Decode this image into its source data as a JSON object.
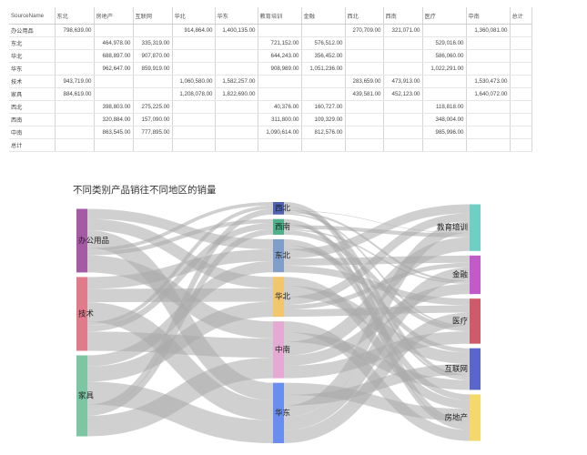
{
  "table": {
    "corner": "SourceName",
    "columns": [
      "东北",
      "房地产",
      "互联网",
      "华北",
      "华东",
      "教育培训",
      "金融",
      "西北",
      "西南",
      "医疗",
      "中南",
      "总计"
    ],
    "rows": [
      {
        "name": "办公用品",
        "cells": [
          "798,639.00",
          "",
          "",
          "914,864.00",
          "1,400,135.00",
          "",
          "",
          "270,709.00",
          "321,071.00",
          "",
          "1,360,081.00",
          ""
        ]
      },
      {
        "name": "东北",
        "cells": [
          "",
          "464,978.00",
          "335,319.00",
          "",
          "",
          "721,152.00",
          "576,512.00",
          "",
          "",
          "529,016.00",
          "",
          ""
        ]
      },
      {
        "name": "华北",
        "cells": [
          "",
          "688,897.00",
          "907,870.00",
          "",
          "",
          "644,243.00",
          "356,452.00",
          "",
          "",
          "586,060.00",
          "",
          ""
        ]
      },
      {
        "name": "华东",
        "cells": [
          "",
          "962,647.00",
          "859,919.00",
          "",
          "",
          "908,989.00",
          "1,051,236.00",
          "",
          "",
          "1,022,291.00",
          "",
          ""
        ]
      },
      {
        "name": "技术",
        "cells": [
          "943,719.00",
          "",
          "",
          "1,060,580.00",
          "1,582,257.00",
          "",
          "",
          "283,659.00",
          "473,913.00",
          "",
          "1,530,473.00",
          ""
        ]
      },
      {
        "name": "家具",
        "cells": [
          "884,619.00",
          "",
          "",
          "1,208,078.00",
          "1,822,690.00",
          "",
          "",
          "439,581.00",
          "452,123.00",
          "",
          "1,640,072.00",
          ""
        ]
      },
      {
        "name": "西北",
        "cells": [
          "",
          "398,803.00",
          "275,225.00",
          "",
          "",
          "40,376.00",
          "160,727.00",
          "",
          "",
          "118,818.00",
          "",
          ""
        ]
      },
      {
        "name": "西南",
        "cells": [
          "",
          "320,884.00",
          "157,090.00",
          "",
          "",
          "311,800.00",
          "109,329.00",
          "",
          "",
          "348,004.00",
          "",
          ""
        ]
      },
      {
        "name": "中南",
        "cells": [
          "",
          "863,545.00",
          "777,895.00",
          "",
          "",
          "1,090,614.00",
          "812,576.00",
          "",
          "",
          "985,996.00",
          "",
          ""
        ]
      },
      {
        "name": "总计",
        "cells": [
          "",
          "",
          "",
          "",
          "",
          "",
          "",
          "",
          "",
          "",
          "",
          ""
        ]
      }
    ]
  },
  "chart_data": {
    "type": "sankey",
    "title": "不同类别产品销往不同地区的销量",
    "nodes": [
      {
        "name": "办公用品",
        "column": 0,
        "color": "#a45aa4"
      },
      {
        "name": "技术",
        "column": 0,
        "color": "#e07b8c"
      },
      {
        "name": "家具",
        "column": 0,
        "color": "#7cc6a4"
      },
      {
        "name": "西北",
        "column": 1,
        "color": "#4f63b0"
      },
      {
        "name": "西南",
        "column": 1,
        "color": "#4fb08c"
      },
      {
        "name": "东北",
        "column": 1,
        "color": "#7f9ec9"
      },
      {
        "name": "华北",
        "column": 1,
        "color": "#f2c66d"
      },
      {
        "name": "中南",
        "column": 1,
        "color": "#e5a9d4"
      },
      {
        "name": "华东",
        "column": 1,
        "color": "#6a8df0"
      },
      {
        "name": "教育培训",
        "column": 2,
        "color": "#6fcfc4"
      },
      {
        "name": "金融",
        "column": 2,
        "color": "#c25ac9"
      },
      {
        "name": "医疗",
        "column": 2,
        "color": "#cf5a6a"
      },
      {
        "name": "互联网",
        "column": 2,
        "color": "#5a66c9"
      },
      {
        "name": "房地产",
        "column": 2,
        "color": "#f4d96a"
      }
    ],
    "links": [
      {
        "source": "办公用品",
        "target": "东北",
        "value": 798639
      },
      {
        "source": "办公用品",
        "target": "华北",
        "value": 914864
      },
      {
        "source": "办公用品",
        "target": "华东",
        "value": 1400135
      },
      {
        "source": "办公用品",
        "target": "西北",
        "value": 270709
      },
      {
        "source": "办公用品",
        "target": "西南",
        "value": 321071
      },
      {
        "source": "办公用品",
        "target": "中南",
        "value": 1360081
      },
      {
        "source": "技术",
        "target": "东北",
        "value": 943719
      },
      {
        "source": "技术",
        "target": "华北",
        "value": 1060580
      },
      {
        "source": "技术",
        "target": "华东",
        "value": 1582257
      },
      {
        "source": "技术",
        "target": "西北",
        "value": 283659
      },
      {
        "source": "技术",
        "target": "西南",
        "value": 473913
      },
      {
        "source": "技术",
        "target": "中南",
        "value": 1530473
      },
      {
        "source": "家具",
        "target": "东北",
        "value": 884619
      },
      {
        "source": "家具",
        "target": "华北",
        "value": 1208078
      },
      {
        "source": "家具",
        "target": "华东",
        "value": 1822690
      },
      {
        "source": "家具",
        "target": "西北",
        "value": 439581
      },
      {
        "source": "家具",
        "target": "西南",
        "value": 452123
      },
      {
        "source": "家具",
        "target": "中南",
        "value": 1640072
      },
      {
        "source": "东北",
        "target": "房地产",
        "value": 464978
      },
      {
        "source": "东北",
        "target": "互联网",
        "value": 335319
      },
      {
        "source": "东北",
        "target": "教育培训",
        "value": 721152
      },
      {
        "source": "东北",
        "target": "金融",
        "value": 576512
      },
      {
        "source": "东北",
        "target": "医疗",
        "value": 529016
      },
      {
        "source": "华北",
        "target": "房地产",
        "value": 688897
      },
      {
        "source": "华北",
        "target": "互联网",
        "value": 907870
      },
      {
        "source": "华北",
        "target": "教育培训",
        "value": 644243
      },
      {
        "source": "华北",
        "target": "金融",
        "value": 356452
      },
      {
        "source": "华北",
        "target": "医疗",
        "value": 586060
      },
      {
        "source": "华东",
        "target": "房地产",
        "value": 962647
      },
      {
        "source": "华东",
        "target": "互联网",
        "value": 859919
      },
      {
        "source": "华东",
        "target": "教育培训",
        "value": 908989
      },
      {
        "source": "华东",
        "target": "金融",
        "value": 1051236
      },
      {
        "source": "华东",
        "target": "医疗",
        "value": 1022291
      },
      {
        "source": "西北",
        "target": "房地产",
        "value": 398803
      },
      {
        "source": "西北",
        "target": "互联网",
        "value": 275225
      },
      {
        "source": "西北",
        "target": "教育培训",
        "value": 40376
      },
      {
        "source": "西北",
        "target": "金融",
        "value": 160727
      },
      {
        "source": "西北",
        "target": "医疗",
        "value": 118818
      },
      {
        "source": "西南",
        "target": "房地产",
        "value": 320884
      },
      {
        "source": "西南",
        "target": "互联网",
        "value": 157090
      },
      {
        "source": "西南",
        "target": "教育培训",
        "value": 311800
      },
      {
        "source": "西南",
        "target": "金融",
        "value": 109329
      },
      {
        "source": "西南",
        "target": "医疗",
        "value": 348004
      },
      {
        "source": "中南",
        "target": "房地产",
        "value": 863545
      },
      {
        "source": "中南",
        "target": "互联网",
        "value": 777895
      },
      {
        "source": "中南",
        "target": "教育培训",
        "value": 1090614
      },
      {
        "source": "中南",
        "target": "金融",
        "value": 812576
      },
      {
        "source": "中南",
        "target": "医疗",
        "value": 985996
      }
    ]
  }
}
